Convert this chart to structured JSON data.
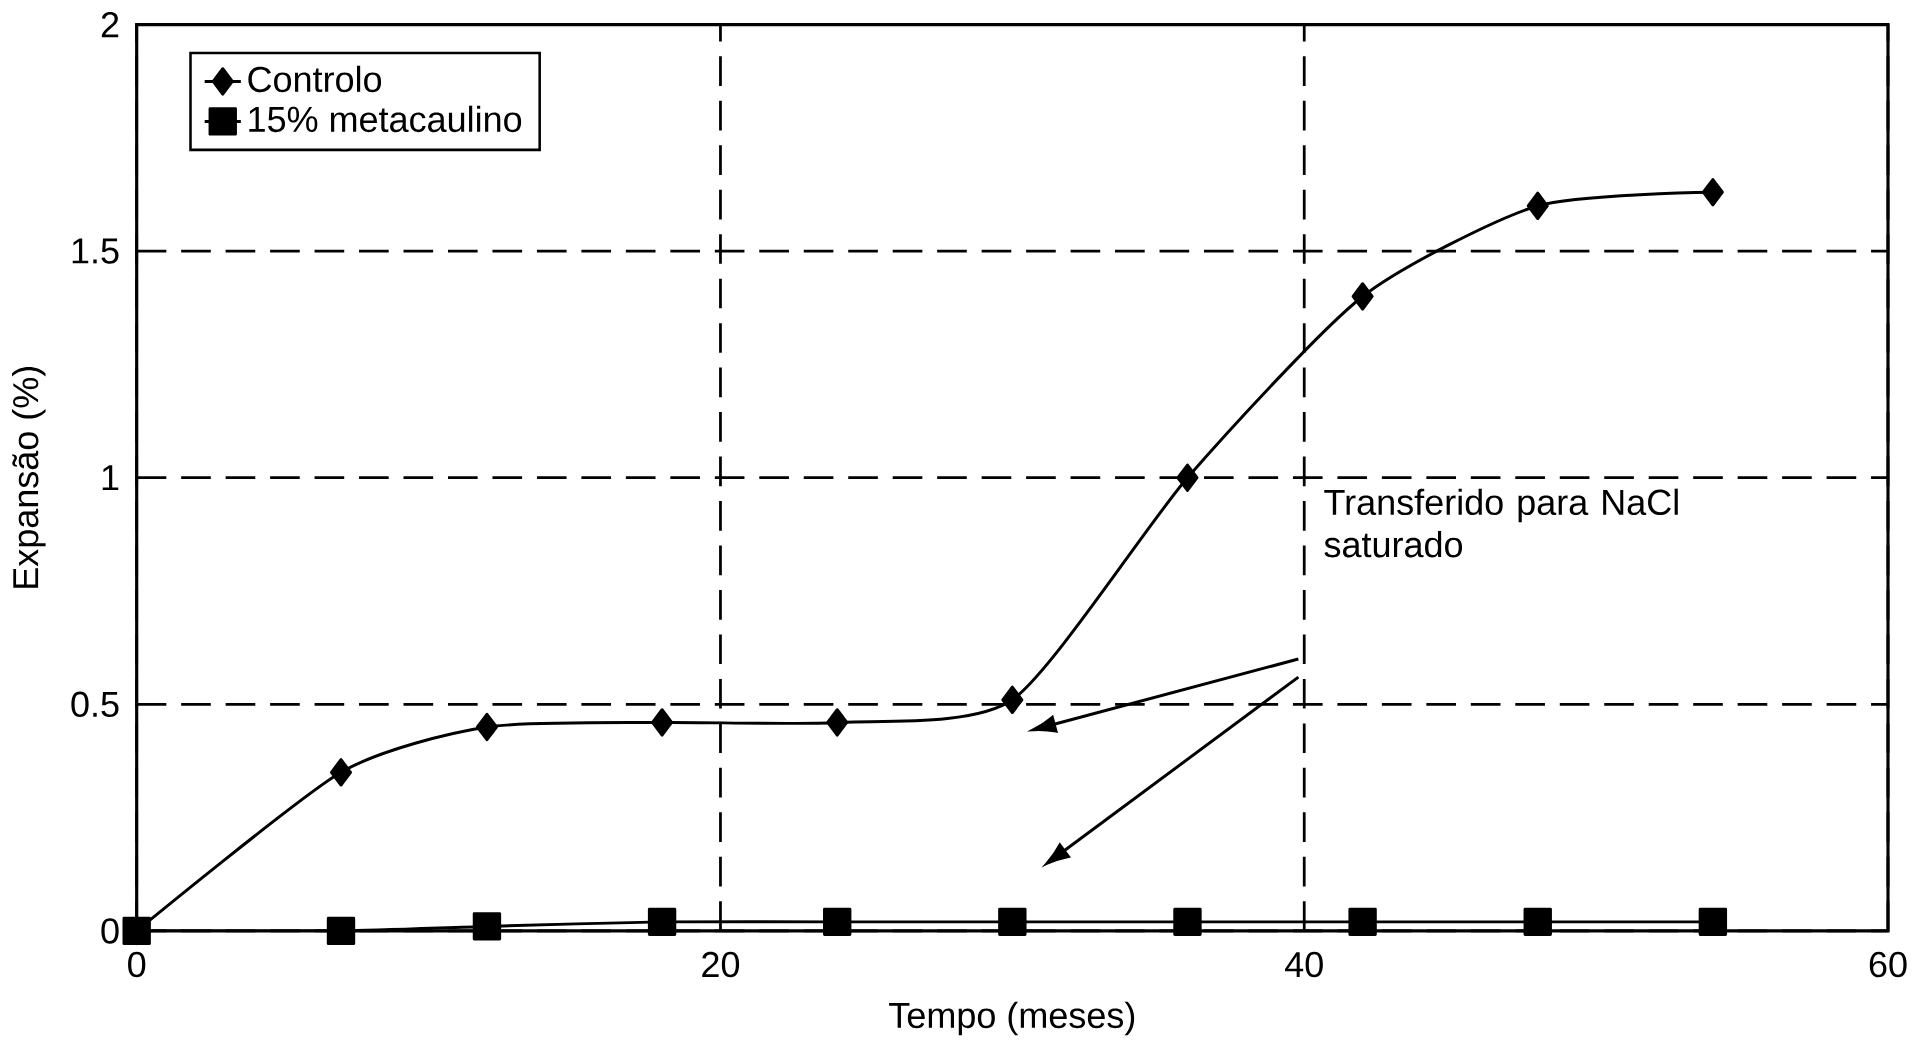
{
  "chart_data": {
    "type": "line",
    "xlabel": "Tempo (meses)",
    "ylabel": "Expansão (%)",
    "x": [
      0,
      7,
      12,
      18,
      24,
      30,
      36,
      42,
      48,
      54
    ],
    "series": [
      {
        "name": "Controlo",
        "color": "#000000",
        "marker": "diamond",
        "values": [
          0,
          0.35,
          0.45,
          0.46,
          0.46,
          0.51,
          1.0,
          1.4,
          1.6,
          1.63
        ]
      },
      {
        "name": "15% metacaulino",
        "color": "#000000",
        "marker": "square",
        "values": [
          0,
          0,
          0.01,
          0.02,
          0.02,
          0.02,
          0.02,
          0.02,
          0.02,
          0.02
        ]
      }
    ],
    "xlim": [
      0,
      60
    ],
    "xticks": [
      0,
      20,
      40,
      60
    ],
    "ylim": [
      0,
      2
    ],
    "yticks": [
      0,
      0.5,
      1,
      1.5,
      2
    ],
    "grid": true,
    "legend": "top left",
    "line_style": "solid",
    "annotations": [
      "Transferido para NaCl saturado"
    ]
  }
}
